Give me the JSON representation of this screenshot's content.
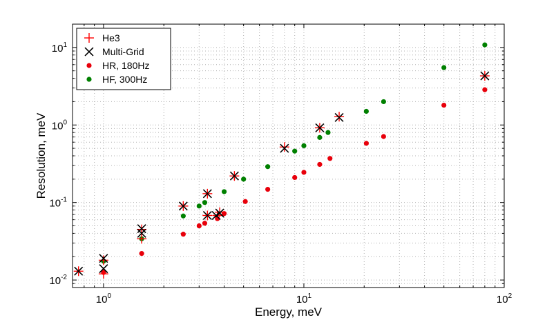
{
  "chart_data": {
    "type": "scatter",
    "title": "",
    "xlabel": "Energy, meV",
    "ylabel": "Resolution, meV",
    "xscale": "log",
    "yscale": "log",
    "xlim": [
      0.7,
      100
    ],
    "ylim": [
      0.008,
      20
    ],
    "grid": true,
    "legend_position": "top-left",
    "x_ticks": [
      {
        "base": "10",
        "exp": "0",
        "value": 1
      },
      {
        "base": "10",
        "exp": "1",
        "value": 10
      },
      {
        "base": "10",
        "exp": "2",
        "value": 100
      }
    ],
    "y_ticks": [
      {
        "base": "10",
        "exp": "-2",
        "value": 0.01
      },
      {
        "base": "10",
        "exp": "-1",
        "value": 0.1
      },
      {
        "base": "10",
        "exp": "0",
        "value": 1
      },
      {
        "base": "10",
        "exp": "1",
        "value": 10
      }
    ],
    "series": [
      {
        "name": "He3",
        "marker": "plus",
        "color": "#ff0000",
        "points": [
          [
            0.75,
            0.013
          ],
          [
            1.0,
            0.012
          ],
          [
            1.0,
            0.018
          ],
          [
            1.55,
            0.034
          ],
          [
            1.55,
            0.045
          ],
          [
            2.5,
            0.09
          ],
          [
            3.3,
            0.068
          ],
          [
            3.3,
            0.13
          ],
          [
            3.7,
            0.068
          ],
          [
            3.8,
            0.075
          ],
          [
            4.5,
            0.22
          ],
          [
            8.0,
            0.52
          ],
          [
            12.0,
            0.92
          ],
          [
            15.0,
            1.28
          ],
          [
            80.0,
            4.3
          ]
        ]
      },
      {
        "name": "Multi-Grid",
        "marker": "x",
        "color": "#000000",
        "points": [
          [
            0.75,
            0.013
          ],
          [
            1.0,
            0.014
          ],
          [
            1.0,
            0.019
          ],
          [
            1.55,
            0.04
          ],
          [
            1.55,
            0.046
          ],
          [
            2.5,
            0.09
          ],
          [
            3.3,
            0.068
          ],
          [
            3.3,
            0.13
          ],
          [
            3.65,
            0.068
          ],
          [
            3.8,
            0.073
          ],
          [
            4.5,
            0.22
          ],
          [
            8.0,
            0.5
          ],
          [
            12.0,
            0.92
          ],
          [
            15.0,
            1.25
          ],
          [
            80.0,
            4.3
          ]
        ]
      },
      {
        "name": "HR, 180Hz",
        "marker": "dot",
        "color": "#e8000b",
        "points": [
          [
            1.0,
            0.0125
          ],
          [
            1.55,
            0.022
          ],
          [
            2.5,
            0.039
          ],
          [
            3.0,
            0.05
          ],
          [
            3.2,
            0.054
          ],
          [
            3.7,
            0.062
          ],
          [
            4.0,
            0.072
          ],
          [
            5.1,
            0.103
          ],
          [
            6.6,
            0.148
          ],
          [
            9.0,
            0.21
          ],
          [
            10.0,
            0.245
          ],
          [
            12.0,
            0.31
          ],
          [
            13.5,
            0.37
          ],
          [
            20.5,
            0.58
          ],
          [
            25.0,
            0.71
          ],
          [
            50.0,
            1.8
          ],
          [
            80.0,
            2.85
          ]
        ]
      },
      {
        "name": "HF, 300Hz",
        "marker": "dot",
        "color": "#008000",
        "points": [
          [
            1.0,
            0.0175
          ],
          [
            1.55,
            0.034
          ],
          [
            2.5,
            0.067
          ],
          [
            3.0,
            0.09
          ],
          [
            3.2,
            0.1
          ],
          [
            4.0,
            0.138
          ],
          [
            5.0,
            0.2
          ],
          [
            6.6,
            0.29
          ],
          [
            9.0,
            0.46
          ],
          [
            10.0,
            0.54
          ],
          [
            12.0,
            0.69
          ],
          [
            13.2,
            0.8
          ],
          [
            20.5,
            1.5
          ],
          [
            25.0,
            2.0
          ],
          [
            50.0,
            5.5
          ],
          [
            80.0,
            10.8
          ]
        ]
      }
    ]
  }
}
